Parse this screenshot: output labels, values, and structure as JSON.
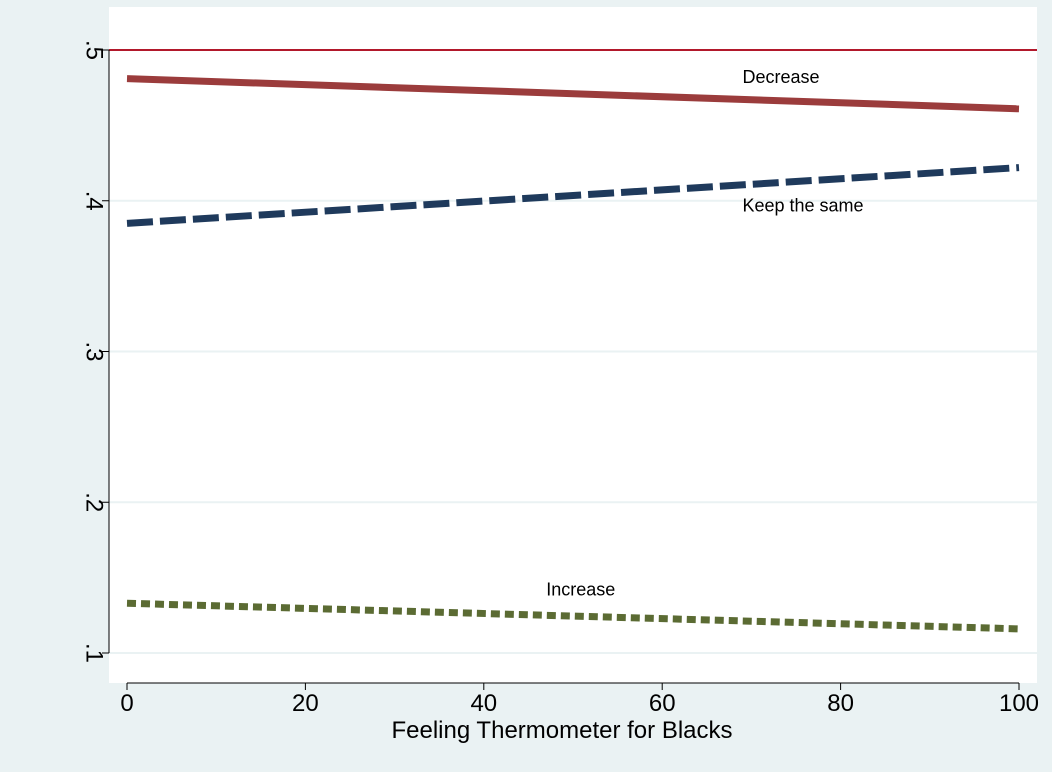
{
  "chart_data": {
    "type": "line",
    "title": "",
    "xlabel": "Feeling Thermometer for Blacks",
    "ylabel": "",
    "xlim": [
      0,
      100
    ],
    "ylim": [
      0.1,
      0.5
    ],
    "xticks": [
      {
        "value": 0,
        "label": "0"
      },
      {
        "value": 20,
        "label": "20"
      },
      {
        "value": 40,
        "label": "40"
      },
      {
        "value": 60,
        "label": "60"
      },
      {
        "value": 80,
        "label": "80"
      },
      {
        "value": 100,
        "label": "100"
      }
    ],
    "yticks": [
      {
        "value": 0.1,
        "label": ".1"
      },
      {
        "value": 0.2,
        "label": ".2"
      },
      {
        "value": 0.3,
        "label": ".3"
      },
      {
        "value": 0.4,
        "label": ".4"
      },
      {
        "value": 0.5,
        "label": ".5"
      }
    ],
    "grid": true,
    "reference_line": {
      "y": 0.5,
      "color": "#b2182b"
    },
    "series": [
      {
        "name": "Decrease",
        "x": [
          0,
          100
        ],
        "y": [
          0.481,
          0.461
        ],
        "color": "#9b3c3c",
        "style": "solid",
        "label_at": {
          "x": 69,
          "y": 0.478
        }
      },
      {
        "name": "Keep the same",
        "x": [
          0,
          100
        ],
        "y": [
          0.385,
          0.422
        ],
        "color": "#1f3a5c",
        "style": "dashed",
        "label_at": {
          "x": 69,
          "y": 0.393
        }
      },
      {
        "name": "Increase",
        "x": [
          0,
          100
        ],
        "y": [
          0.133,
          0.116
        ],
        "color": "#5b6b33",
        "style": "dotted",
        "label_at": {
          "x": 47,
          "y": 0.138
        }
      }
    ],
    "colors": {
      "outer_background": "#eaf2f3",
      "plot_background": "#ffffff",
      "gridline": "#eaf2f3",
      "axis": "#000000"
    }
  }
}
